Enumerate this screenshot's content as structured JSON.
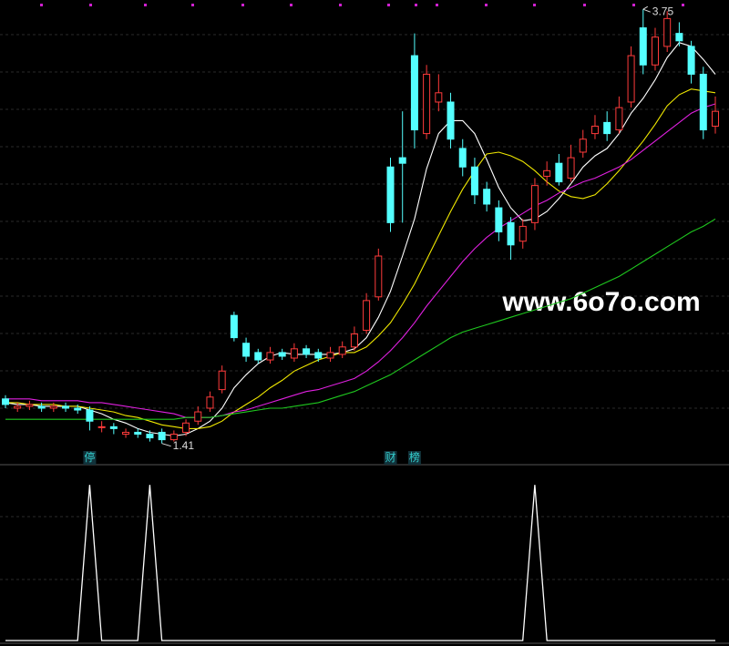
{
  "chart_data": {
    "type": "candlestick",
    "open": [
      1.65,
      1.6,
      1.61,
      1.61,
      1.6,
      1.61,
      1.6,
      1.59,
      1.5,
      1.5,
      1.46,
      1.47,
      1.46,
      1.47,
      1.43,
      1.47,
      1.53,
      1.6,
      1.7,
      2.1,
      1.95,
      1.9,
      1.86,
      1.9,
      1.87,
      1.92,
      1.9,
      1.87,
      1.89,
      1.93,
      2.02,
      2.2,
      2.9,
      2.95,
      3.5,
      3.08,
      3.25,
      3.25,
      3.0,
      2.9,
      2.78,
      2.68,
      2.6,
      2.5,
      2.6,
      2.85,
      2.92,
      2.84,
      2.98,
      3.08,
      3.14,
      3.1,
      3.25,
      3.65,
      3.45,
      3.55,
      3.62,
      3.55,
      3.4,
      3.12
    ],
    "high": [
      1.67,
      1.63,
      1.64,
      1.63,
      1.63,
      1.63,
      1.62,
      1.61,
      1.53,
      1.52,
      1.49,
      1.49,
      1.48,
      1.49,
      1.48,
      1.54,
      1.61,
      1.69,
      1.83,
      2.12,
      1.98,
      1.92,
      1.93,
      1.92,
      1.95,
      1.94,
      1.92,
      1.93,
      1.96,
      2.04,
      2.22,
      2.46,
      2.95,
      3.2,
      3.62,
      3.45,
      3.4,
      3.3,
      3.05,
      2.95,
      2.82,
      2.72,
      2.63,
      2.62,
      2.84,
      2.93,
      2.97,
      3.02,
      3.1,
      3.18,
      3.2,
      3.28,
      3.55,
      3.75,
      3.65,
      3.74,
      3.68,
      3.58,
      3.44,
      3.28
    ],
    "low": [
      1.6,
      1.58,
      1.59,
      1.58,
      1.58,
      1.58,
      1.57,
      1.48,
      1.47,
      1.46,
      1.44,
      1.44,
      1.42,
      1.41,
      1.42,
      1.45,
      1.51,
      1.58,
      1.68,
      1.96,
      1.85,
      1.84,
      1.84,
      1.86,
      1.85,
      1.87,
      1.85,
      1.85,
      1.87,
      1.91,
      2.0,
      2.18,
      2.55,
      2.6,
      3.0,
      3.05,
      3.2,
      3.0,
      2.85,
      2.7,
      2.66,
      2.5,
      2.4,
      2.46,
      2.56,
      2.8,
      2.8,
      2.82,
      2.95,
      3.05,
      3.04,
      3.08,
      3.22,
      3.4,
      3.42,
      3.52,
      3.55,
      3.35,
      3.05,
      3.08
    ],
    "close": [
      1.62,
      1.61,
      1.62,
      1.6,
      1.61,
      1.6,
      1.59,
      1.53,
      1.5,
      1.49,
      1.47,
      1.46,
      1.44,
      1.43,
      1.46,
      1.52,
      1.58,
      1.66,
      1.8,
      1.98,
      1.88,
      1.86,
      1.9,
      1.88,
      1.92,
      1.89,
      1.87,
      1.9,
      1.93,
      2.0,
      2.18,
      2.42,
      2.6,
      2.92,
      3.1,
      3.4,
      3.3,
      3.05,
      2.9,
      2.75,
      2.7,
      2.55,
      2.48,
      2.58,
      2.8,
      2.88,
      2.82,
      2.95,
      3.05,
      3.12,
      3.08,
      3.22,
      3.5,
      3.45,
      3.6,
      3.7,
      3.58,
      3.4,
      3.1,
      3.2
    ],
    "up_color": "#ff3b3b",
    "down_color": "#54ffff",
    "ylim": [
      1.32,
      3.8
    ],
    "lines": [
      {
        "color": "#ffffff",
        "values": [
          1.63,
          1.62,
          1.62,
          1.61,
          1.61,
          1.61,
          1.61,
          1.59,
          1.57,
          1.54,
          1.52,
          1.49,
          1.47,
          1.46,
          1.45,
          1.46,
          1.49,
          1.53,
          1.6,
          1.71,
          1.78,
          1.84,
          1.88,
          1.9,
          1.89,
          1.89,
          1.89,
          1.89,
          1.9,
          1.92,
          1.98,
          2.09,
          2.23,
          2.42,
          2.62,
          2.89,
          3.08,
          3.15,
          3.15,
          3.08,
          2.94,
          2.79,
          2.68,
          2.61,
          2.62,
          2.66,
          2.73,
          2.81,
          2.9,
          2.96,
          3.0,
          3.08,
          3.19,
          3.27,
          3.37,
          3.49,
          3.57,
          3.55,
          3.48,
          3.4
        ]
      },
      {
        "color": "#f0e800",
        "values": [
          1.63,
          1.63,
          1.62,
          1.62,
          1.62,
          1.61,
          1.61,
          1.6,
          1.59,
          1.58,
          1.56,
          1.55,
          1.53,
          1.51,
          1.5,
          1.49,
          1.49,
          1.5,
          1.53,
          1.58,
          1.62,
          1.66,
          1.71,
          1.75,
          1.8,
          1.83,
          1.86,
          1.88,
          1.9,
          1.9,
          1.93,
          1.99,
          2.06,
          2.16,
          2.27,
          2.4,
          2.53,
          2.66,
          2.78,
          2.88,
          2.97,
          2.98,
          2.96,
          2.93,
          2.88,
          2.82,
          2.77,
          2.74,
          2.73,
          2.75,
          2.81,
          2.88,
          2.96,
          3.04,
          3.13,
          3.23,
          3.29,
          3.32,
          3.31,
          3.3
        ]
      },
      {
        "color": "#e020e0",
        "values": [
          1.65,
          1.65,
          1.65,
          1.64,
          1.64,
          1.64,
          1.64,
          1.63,
          1.63,
          1.62,
          1.61,
          1.6,
          1.59,
          1.58,
          1.57,
          1.55,
          1.55,
          1.55,
          1.56,
          1.58,
          1.59,
          1.61,
          1.63,
          1.65,
          1.67,
          1.69,
          1.7,
          1.72,
          1.74,
          1.76,
          1.8,
          1.85,
          1.91,
          1.98,
          2.06,
          2.15,
          2.23,
          2.31,
          2.39,
          2.46,
          2.52,
          2.57,
          2.61,
          2.65,
          2.69,
          2.72,
          2.76,
          2.79,
          2.82,
          2.84,
          2.87,
          2.9,
          2.94,
          2.99,
          3.04,
          3.09,
          3.14,
          3.19,
          3.22,
          3.24
        ]
      },
      {
        "color": "#1fc81f",
        "values": [
          1.54,
          1.54,
          1.54,
          1.54,
          1.54,
          1.54,
          1.54,
          1.54,
          1.54,
          1.54,
          1.54,
          1.54,
          1.54,
          1.54,
          1.54,
          1.55,
          1.55,
          1.55,
          1.56,
          1.57,
          1.58,
          1.59,
          1.6,
          1.6,
          1.61,
          1.62,
          1.63,
          1.65,
          1.67,
          1.69,
          1.72,
          1.75,
          1.78,
          1.82,
          1.86,
          1.9,
          1.94,
          1.98,
          2.01,
          2.03,
          2.05,
          2.07,
          2.09,
          2.11,
          2.13,
          2.15,
          2.17,
          2.19,
          2.22,
          2.25,
          2.28,
          2.31,
          2.35,
          2.39,
          2.43,
          2.47,
          2.51,
          2.55,
          2.58,
          2.62
        ]
      }
    ],
    "event_labels": [
      null,
      null,
      null,
      null,
      null,
      null,
      null,
      "停",
      null,
      null,
      null,
      null,
      null,
      null,
      null,
      null,
      null,
      null,
      null,
      null,
      null,
      null,
      null,
      null,
      null,
      null,
      null,
      null,
      null,
      null,
      null,
      null,
      "财",
      null,
      "榜",
      null,
      null,
      null,
      null,
      null,
      null,
      null,
      null,
      null,
      null,
      null,
      null,
      null,
      null,
      null,
      null,
      null,
      null,
      null,
      null,
      null,
      null,
      null,
      null,
      null
    ],
    "signal": {
      "color": "#ffffff",
      "ylim": [
        0,
        1.13
      ],
      "values": [
        0,
        0,
        0,
        0,
        0,
        0,
        0,
        1,
        0,
        0,
        0,
        0,
        1,
        0,
        0,
        0,
        0,
        0,
        0,
        0,
        0,
        0,
        0,
        0,
        0,
        0,
        0,
        0,
        0,
        0,
        0,
        0,
        0,
        0,
        0,
        0,
        0,
        0,
        0,
        0,
        0,
        0,
        0,
        0,
        1,
        0,
        0,
        0,
        0,
        0,
        0,
        0,
        0,
        0,
        0,
        0,
        0,
        0,
        0,
        0
      ]
    },
    "watermark": "www.6o7o.com"
  }
}
